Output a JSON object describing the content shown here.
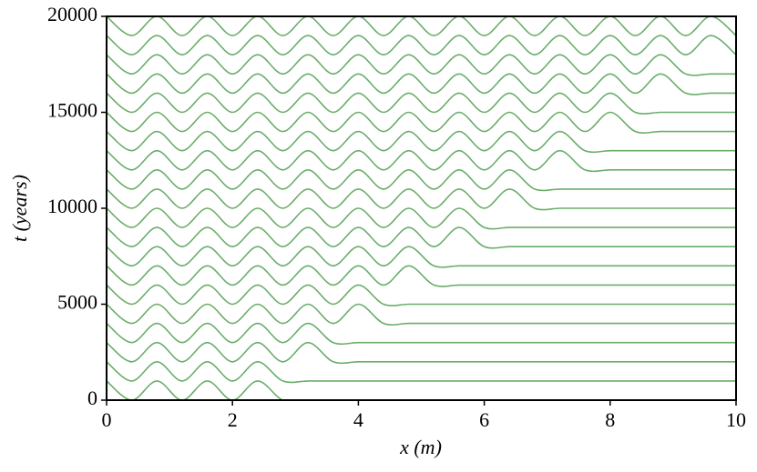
{
  "chart_data": {
    "type": "line",
    "xlabel": "x (m)",
    "ylabel": "t (years)",
    "xlim": [
      0,
      10
    ],
    "ylim": [
      0,
      20000
    ],
    "xticks": [
      0,
      2,
      4,
      6,
      8,
      10
    ],
    "yticks": [
      0,
      5000,
      10000,
      15000,
      20000
    ],
    "color": "#6aae6a",
    "x": [
      0,
      0.4,
      0.8,
      1.2,
      1.6,
      2.0,
      2.4,
      2.8,
      3.2,
      3.6,
      4.0,
      4.4,
      4.8,
      5.2,
      5.6,
      6.0,
      6.4,
      6.8,
      7.2,
      7.6,
      8.0,
      8.4,
      8.8,
      9.2,
      9.6,
      10.0
    ],
    "series": [
      {
        "values": [
          1000,
          0,
          1000,
          0,
          1000,
          0,
          1000,
          0,
          0,
          0,
          0,
          0,
          0,
          0,
          0,
          0,
          0,
          0,
          0,
          0,
          0,
          0,
          0,
          0,
          0,
          0
        ]
      },
      {
        "values": [
          2000,
          1000,
          2000,
          1000,
          2000,
          1000,
          2000,
          1000,
          1000,
          1000,
          1000,
          1000,
          1000,
          1000,
          1000,
          1000,
          1000,
          1000,
          1000,
          1000,
          1000,
          1000,
          1000,
          1000,
          1000,
          1000
        ]
      },
      {
        "values": [
          3000,
          2000,
          3000,
          2000,
          3000,
          2000,
          3000,
          2000,
          3000,
          2000,
          2000,
          2000,
          2000,
          2000,
          2000,
          2000,
          2000,
          2000,
          2000,
          2000,
          2000,
          2000,
          2000,
          2000,
          2000,
          2000
        ]
      },
      {
        "values": [
          4000,
          3000,
          4000,
          3000,
          4000,
          3000,
          4000,
          3000,
          4000,
          3000,
          3000,
          3000,
          3000,
          3000,
          3000,
          3000,
          3000,
          3000,
          3000,
          3000,
          3000,
          3000,
          3000,
          3000,
          3000,
          3000
        ]
      },
      {
        "values": [
          5000,
          4000,
          5000,
          4000,
          5000,
          4000,
          5000,
          4000,
          5000,
          4000,
          5000,
          4000,
          4000,
          4000,
          4000,
          4000,
          4000,
          4000,
          4000,
          4000,
          4000,
          4000,
          4000,
          4000,
          4000,
          4000
        ]
      },
      {
        "values": [
          6000,
          5000,
          6000,
          5000,
          6000,
          5000,
          6000,
          5000,
          6000,
          5000,
          6000,
          5000,
          5000,
          5000,
          5000,
          5000,
          5000,
          5000,
          5000,
          5000,
          5000,
          5000,
          5000,
          5000,
          5000,
          5000
        ]
      },
      {
        "values": [
          7000,
          6000,
          7000,
          6000,
          7000,
          6000,
          7000,
          6000,
          7000,
          6000,
          7000,
          6000,
          7000,
          6000,
          6000,
          6000,
          6000,
          6000,
          6000,
          6000,
          6000,
          6000,
          6000,
          6000,
          6000,
          6000
        ]
      },
      {
        "values": [
          8000,
          7000,
          8000,
          7000,
          8000,
          7000,
          8000,
          7000,
          8000,
          7000,
          8000,
          7000,
          8000,
          7000,
          7000,
          7000,
          7000,
          7000,
          7000,
          7000,
          7000,
          7000,
          7000,
          7000,
          7000,
          7000
        ]
      },
      {
        "values": [
          9000,
          8000,
          9000,
          8000,
          9000,
          8000,
          9000,
          8000,
          9000,
          8000,
          9000,
          8000,
          9000,
          8000,
          9000,
          8000,
          8000,
          8000,
          8000,
          8000,
          8000,
          8000,
          8000,
          8000,
          8000,
          8000
        ]
      },
      {
        "values": [
          10000,
          9000,
          10000,
          9000,
          10000,
          9000,
          10000,
          9000,
          10000,
          9000,
          10000,
          9000,
          10000,
          9000,
          10000,
          9000,
          9000,
          9000,
          9000,
          9000,
          9000,
          9000,
          9000,
          9000,
          9000,
          9000
        ]
      },
      {
        "values": [
          11000,
          10000,
          11000,
          10000,
          11000,
          10000,
          11000,
          10000,
          11000,
          10000,
          11000,
          10000,
          11000,
          10000,
          11000,
          10000,
          11000,
          10000,
          10000,
          10000,
          10000,
          10000,
          10000,
          10000,
          10000,
          10000
        ]
      },
      {
        "values": [
          12000,
          11000,
          12000,
          11000,
          12000,
          11000,
          12000,
          11000,
          12000,
          11000,
          12000,
          11000,
          12000,
          11000,
          12000,
          11000,
          12000,
          11000,
          11000,
          11000,
          11000,
          11000,
          11000,
          11000,
          11000,
          11000
        ]
      },
      {
        "values": [
          13000,
          12000,
          13000,
          12000,
          13000,
          12000,
          13000,
          12000,
          13000,
          12000,
          13000,
          12000,
          13000,
          12000,
          13000,
          12000,
          13000,
          12000,
          13000,
          12000,
          12000,
          12000,
          12000,
          12000,
          12000,
          12000
        ]
      },
      {
        "values": [
          14000,
          13000,
          14000,
          13000,
          14000,
          13000,
          14000,
          13000,
          14000,
          13000,
          14000,
          13000,
          14000,
          13000,
          14000,
          13000,
          14000,
          13000,
          14000,
          13000,
          13000,
          13000,
          13000,
          13000,
          13000,
          13000
        ]
      },
      {
        "values": [
          15000,
          14000,
          15000,
          14000,
          15000,
          14000,
          15000,
          14000,
          15000,
          14000,
          15000,
          14000,
          15000,
          14000,
          15000,
          14000,
          15000,
          14000,
          15000,
          14000,
          15000,
          14000,
          14000,
          14000,
          14000,
          14000
        ]
      },
      {
        "values": [
          16000,
          15000,
          16000,
          15000,
          16000,
          15000,
          16000,
          15000,
          16000,
          15000,
          16000,
          15000,
          16000,
          15000,
          16000,
          15000,
          16000,
          15000,
          16000,
          15000,
          16000,
          15000,
          15000,
          15000,
          15000,
          15000
        ]
      },
      {
        "values": [
          17000,
          16000,
          17000,
          16000,
          17000,
          16000,
          17000,
          16000,
          17000,
          16000,
          17000,
          16000,
          17000,
          16000,
          17000,
          16000,
          17000,
          16000,
          17000,
          16000,
          17000,
          16000,
          17000,
          16000,
          16000,
          16000
        ]
      },
      {
        "values": [
          18000,
          17000,
          18000,
          17000,
          18000,
          17000,
          18000,
          17000,
          18000,
          17000,
          18000,
          17000,
          18000,
          17000,
          18000,
          17000,
          18000,
          17000,
          18000,
          17000,
          18000,
          17000,
          18000,
          17000,
          17000,
          17000
        ]
      },
      {
        "values": [
          19000,
          18000,
          19000,
          18000,
          19000,
          18000,
          19000,
          18000,
          19000,
          18000,
          19000,
          18000,
          19000,
          18000,
          19000,
          18000,
          19000,
          18000,
          19000,
          18000,
          19000,
          18000,
          19000,
          18000,
          19000,
          18000
        ]
      },
      {
        "values": [
          20000,
          19000,
          20000,
          19000,
          20000,
          19000,
          20000,
          19000,
          20000,
          19000,
          20000,
          19000,
          20000,
          19000,
          20000,
          19000,
          20000,
          19000,
          20000,
          19000,
          20000,
          19000,
          20000,
          19000,
          20000,
          19000
        ]
      }
    ]
  }
}
